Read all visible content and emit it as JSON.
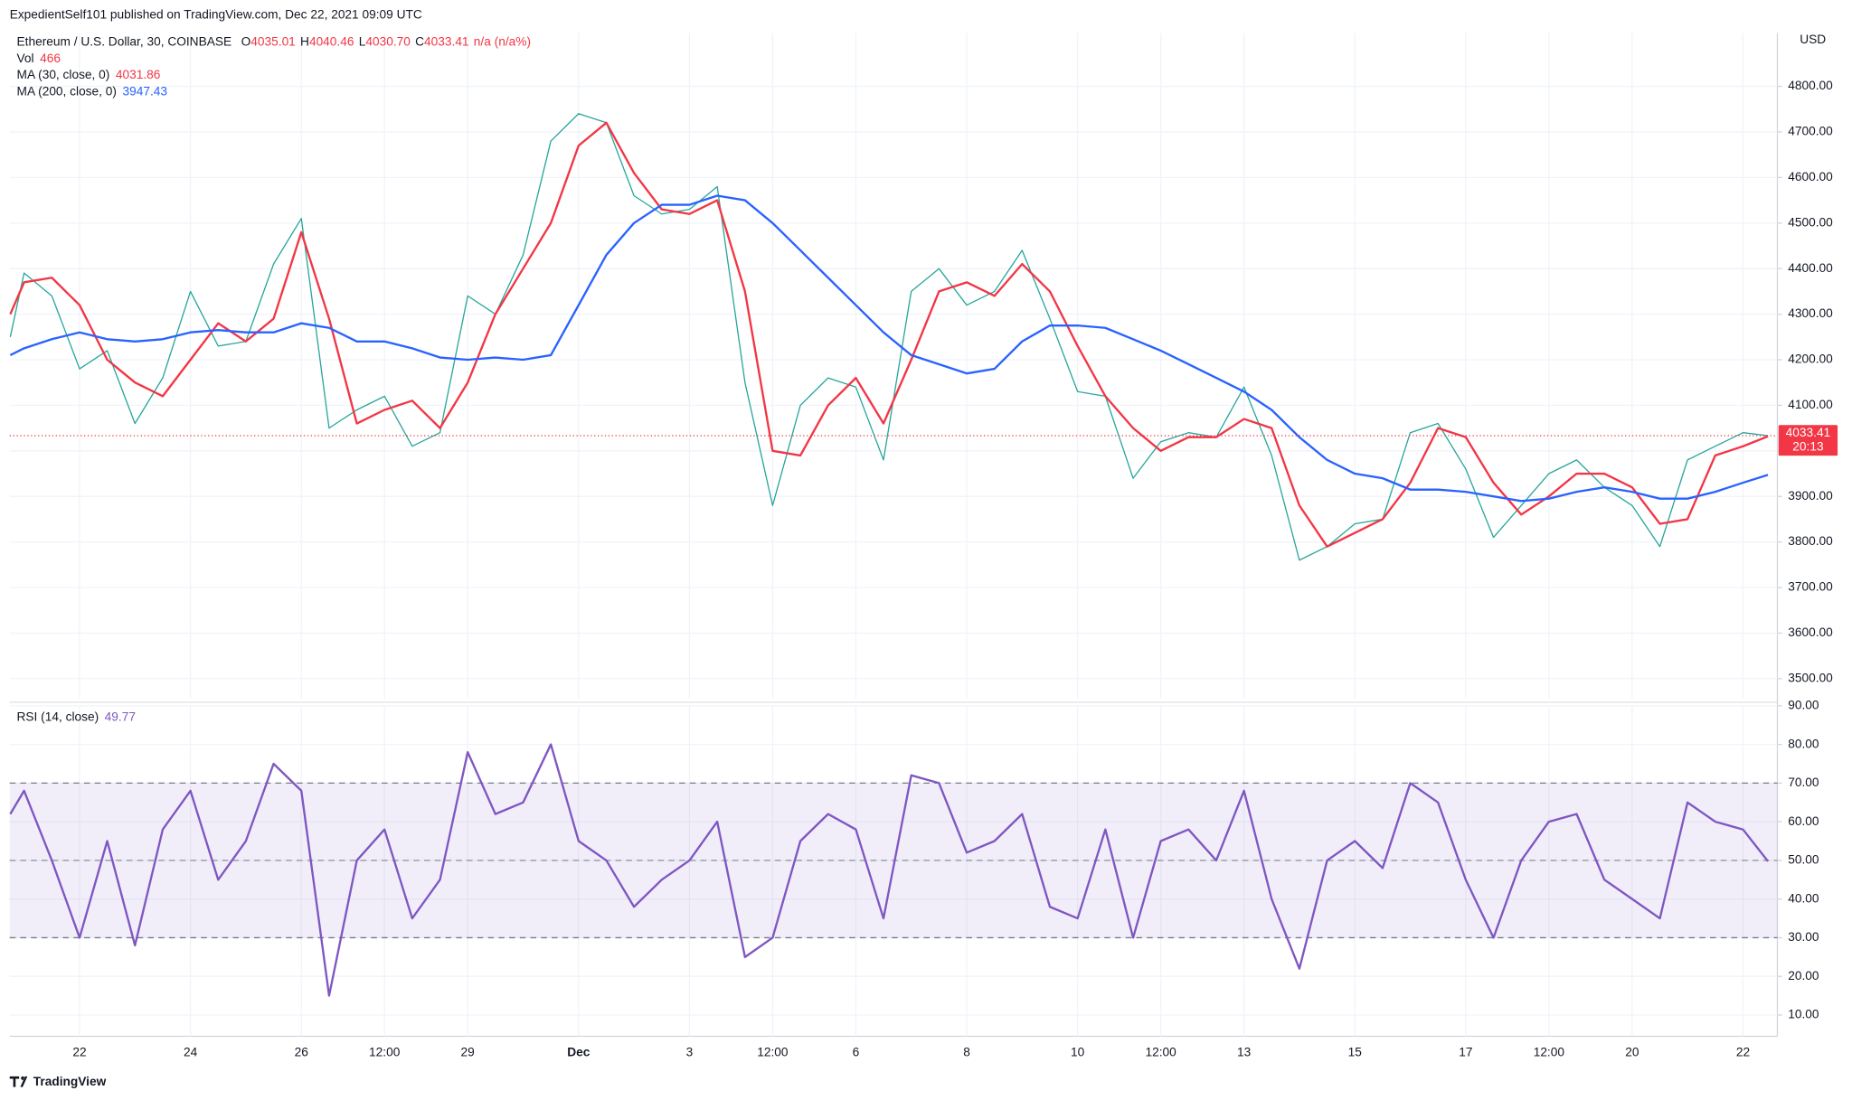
{
  "header": {
    "byline": "ExpedientSelf101 published on TradingView.com, Dec 22, 2021 09:09 UTC",
    "currency": "USD",
    "countdown": "20:13"
  },
  "footer": {
    "brand": "TradingView"
  },
  "chart_data": [
    {
      "type": "line",
      "title": "Ethereum / U.S. Dollar, 30, COINBASE",
      "ohlc": [
        {
          "key": "O",
          "value": "4035.01"
        },
        {
          "key": "H",
          "value": "4040.46"
        },
        {
          "key": "L",
          "value": "4030.70"
        },
        {
          "key": "C",
          "value": "4033.41"
        }
      ],
      "change": "n/a (n/a%)",
      "volume": {
        "label": "Vol",
        "value": 466
      },
      "x": [
        20.75,
        21,
        21.5,
        22,
        22.5,
        23,
        23.5,
        24,
        24.5,
        25,
        25.5,
        26,
        26.5,
        27,
        27.5,
        28,
        28.5,
        29,
        29.5,
        30,
        30.5,
        31,
        31.5,
        32,
        32.5,
        33,
        33.5,
        34,
        34.5,
        35,
        35.5,
        36,
        36.5,
        37,
        37.5,
        38,
        38.5,
        39,
        39.5,
        40,
        40.5,
        41,
        41.5,
        42,
        42.5,
        43,
        43.5,
        44,
        44.5,
        45,
        45.5,
        46,
        46.5,
        47,
        47.5,
        48,
        48.5,
        49,
        49.5,
        50,
        50.5,
        51,
        51.5,
        52,
        52.45
      ],
      "xlim": [
        20.74,
        52.62
      ],
      "xticks": [
        {
          "value": 22,
          "label": "22"
        },
        {
          "value": 24,
          "label": "24"
        },
        {
          "value": 26,
          "label": "26"
        },
        {
          "value": 27.5,
          "label": "12:00"
        },
        {
          "value": 29,
          "label": "29"
        },
        {
          "value": 31,
          "label": "Dec"
        },
        {
          "value": 33,
          "label": "3"
        },
        {
          "value": 34.5,
          "label": "12:00"
        },
        {
          "value": 36,
          "label": "6"
        },
        {
          "value": 38,
          "label": "8"
        },
        {
          "value": 40,
          "label": "10"
        },
        {
          "value": 41.5,
          "label": "12:00"
        },
        {
          "value": 43,
          "label": "13"
        },
        {
          "value": 45,
          "label": "15"
        },
        {
          "value": 47,
          "label": "17"
        },
        {
          "value": 48.5,
          "label": "12:00"
        },
        {
          "value": 50,
          "label": "20"
        },
        {
          "value": 52,
          "label": "22"
        }
      ],
      "ylim": [
        3456,
        4917
      ],
      "yticks": [
        {
          "value": 3500,
          "label": "3500.00"
        },
        {
          "value": 3600,
          "label": "3600.00"
        },
        {
          "value": 3700,
          "label": "3700.00"
        },
        {
          "value": 3800,
          "label": "3800.00"
        },
        {
          "value": 3900,
          "label": "3900.00"
        },
        {
          "value": 4000,
          "label": "4000.00"
        },
        {
          "value": 4100,
          "label": "4100.00"
        },
        {
          "value": 4200,
          "label": "4200.00"
        },
        {
          "value": 4300,
          "label": "4300.00"
        },
        {
          "value": 4400,
          "label": "4400.00"
        },
        {
          "value": 4500,
          "label": "4500.00"
        },
        {
          "value": 4600,
          "label": "4600.00"
        },
        {
          "value": 4700,
          "label": "4700.00"
        },
        {
          "value": 4800,
          "label": "4800.00"
        }
      ],
      "grid": true,
      "series": [
        {
          "color": "#26a69a",
          "values": [
            4250,
            4390,
            4340,
            4180,
            4220,
            4060,
            4160,
            4350,
            4230,
            4240,
            4410,
            4510,
            4050,
            4090,
            4120,
            4010,
            4040,
            4340,
            4300,
            4430,
            4680,
            4740,
            4720,
            4560,
            4520,
            4530,
            4580,
            4150,
            3880,
            4100,
            4160,
            4140,
            3980,
            4350,
            4400,
            4320,
            4350,
            4440,
            4290,
            4130,
            4120,
            3940,
            4020,
            4040,
            4030,
            4140,
            3990,
            3760,
            3790,
            3840,
            3850,
            4040,
            4060,
            3960,
            3810,
            3880,
            3950,
            3980,
            3920,
            3880,
            3790,
            3980,
            4010,
            4040,
            4033.41
          ]
        },
        {
          "name": "MA (30, close, 0)",
          "color": "#f23645",
          "values": [
            4300,
            4370,
            4380,
            4320,
            4200,
            4150,
            4120,
            4200,
            4280,
            4240,
            4290,
            4480,
            4290,
            4060,
            4090,
            4110,
            4050,
            4150,
            4300,
            4400,
            4500,
            4670,
            4720,
            4610,
            4530,
            4520,
            4550,
            4350,
            4000,
            3990,
            4100,
            4160,
            4060,
            4200,
            4350,
            4370,
            4340,
            4410,
            4350,
            4230,
            4120,
            4050,
            4000,
            4030,
            4030,
            4070,
            4050,
            3880,
            3790,
            3820,
            3850,
            3930,
            4050,
            4030,
            3930,
            3860,
            3900,
            3950,
            3950,
            3920,
            3840,
            3850,
            3990,
            4010,
            4031.86
          ]
        },
        {
          "name": "MA (200, close, 0)",
          "color": "#2962ff",
          "values": [
            4210,
            4225,
            4245,
            4260,
            4245,
            4240,
            4245,
            4260,
            4265,
            4260,
            4260,
            4280,
            4270,
            4240,
            4240,
            4225,
            4205,
            4200,
            4205,
            4200,
            4210,
            4320,
            4430,
            4500,
            4540,
            4540,
            4560,
            4550,
            4500,
            4440,
            4380,
            4320,
            4260,
            4210,
            4190,
            4170,
            4180,
            4240,
            4275,
            4275,
            4270,
            4245,
            4220,
            4190,
            4160,
            4130,
            4090,
            4030,
            3980,
            3950,
            3940,
            3915,
            3915,
            3910,
            3900,
            3890,
            3895,
            3910,
            3920,
            3910,
            3895,
            3895,
            3910,
            3930,
            3947.43
          ]
        }
      ]
    },
    {
      "type": "line",
      "ylim": [
        4.5,
        90
      ],
      "yticks": [
        {
          "value": 10,
          "label": "10.00"
        },
        {
          "value": 20,
          "label": "20.00"
        },
        {
          "value": 30,
          "label": "30.00"
        },
        {
          "value": 40,
          "label": "40.00"
        },
        {
          "value": 50,
          "label": "50.00"
        },
        {
          "value": 60,
          "label": "60.00"
        },
        {
          "value": 70,
          "label": "70.00"
        },
        {
          "value": 80,
          "label": "80.00"
        },
        {
          "value": 90,
          "label": "90.00"
        }
      ],
      "bands": [
        30,
        70
      ],
      "midline": 50,
      "series": [
        {
          "name": "RSI (14, close)",
          "color": "#7e57c2",
          "values": [
            62,
            68,
            50,
            30,
            55,
            28,
            58,
            68,
            45,
            55,
            75,
            68,
            15,
            50,
            58,
            35,
            45,
            78,
            62,
            65,
            80,
            55,
            50,
            38,
            45,
            50,
            60,
            25,
            30,
            55,
            62,
            58,
            35,
            72,
            70,
            52,
            55,
            62,
            38,
            35,
            58,
            30,
            55,
            58,
            50,
            68,
            40,
            22,
            50,
            55,
            48,
            70,
            65,
            45,
            30,
            50,
            60,
            62,
            45,
            40,
            35,
            65,
            60,
            58,
            49.77
          ]
        }
      ]
    }
  ]
}
